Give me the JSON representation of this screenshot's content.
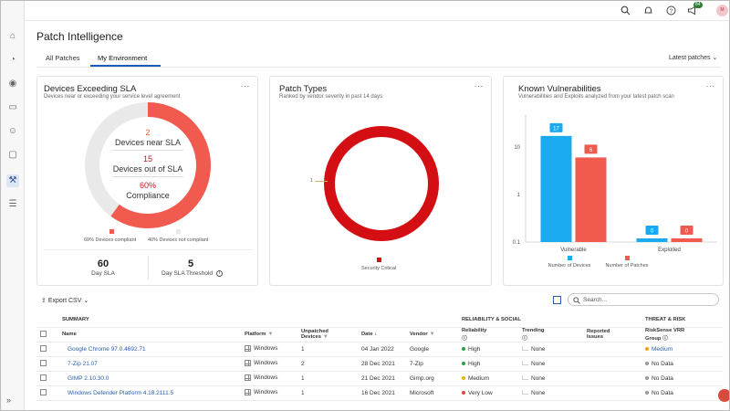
{
  "header": {
    "title": "Patch Intelligence",
    "notifications_badge": "84",
    "avatar_initials": "M"
  },
  "tabs": [
    {
      "label": "All Patches",
      "active": false
    },
    {
      "label": "My Environment",
      "active": true
    }
  ],
  "filter_label": "Latest patches",
  "sla_card": {
    "title": "Devices Exceeding SLA",
    "subtitle": "Devices near or exceeding your service level agreement",
    "near_value": "2",
    "near_label": "Devices near SLA",
    "out_value": "15",
    "out_label": "Devices out of SLA",
    "compliance_value": "60%",
    "compliance_label": "Compliance",
    "legend_compliant": "60% Devices compliant",
    "legend_not_compliant": "40% Devices not compliant",
    "compliance_fraction": 0.6,
    "day_sla_value": "60",
    "day_sla_label": "Day SLA",
    "threshold_value": "5",
    "threshold_label": "Day SLA Threshold",
    "colors": {
      "compliant": "#f05a4f",
      "not_compliant": "#e9e9e9"
    }
  },
  "patch_types": {
    "title": "Patch Types",
    "subtitle": "Ranked by vendor severity in past 14 days",
    "slice_label": "1",
    "legend": "Security Critical",
    "color": "#d40f14"
  },
  "vulnerabilities": {
    "title": "Known Vulnerabilities",
    "subtitle": "Vulnerabilities and Exploits analyzed from your latest patch scan",
    "legend_devices": "Number of Devices",
    "legend_patches": "Number of Patches",
    "colors": {
      "devices": "#1aaaf0",
      "patches": "#f05a4f"
    }
  },
  "chart_data": {
    "type": "bar",
    "categories": [
      "Vulnerable",
      "Exploited"
    ],
    "series": [
      {
        "name": "Number of Devices",
        "values": [
          17,
          0
        ]
      },
      {
        "name": "Number of Patches",
        "values": [
          6,
          0
        ]
      }
    ],
    "yscale": "log",
    "yticks": [
      "0.1",
      "1",
      "10"
    ],
    "ylim": [
      0.1,
      30
    ]
  },
  "table_toolbar": {
    "export_label": "Export CSV",
    "search_placeholder": "Search..."
  },
  "table": {
    "groups": {
      "summary": "SUMMARY",
      "reliability": "RELIABILITY & SOCIAL",
      "threat": "THREAT & RISK"
    },
    "columns": {
      "name": "Name",
      "platform": "Platform",
      "unpatched_1": "Unpatched",
      "unpatched_2": "Devices",
      "date": "Date",
      "vendor": "Vendor",
      "reliability": "Reliability",
      "trending": "Trending",
      "reported_1": "Reported",
      "reported_2": "Issues",
      "vrr_1": "RiskSense VRR",
      "vrr_2": "Group"
    },
    "rows": [
      {
        "name": "Google Chrome 97.0.4692.71",
        "platform": "Windows",
        "devices": "1",
        "date": "04 Jan 2022",
        "vendor": "Google",
        "reliability": "High",
        "rel_color": "#2e9e44",
        "trending": "None",
        "vrr": "Medium",
        "vrr_color": "#f0a020"
      },
      {
        "name": "7-Zip 21.07",
        "platform": "Windows",
        "devices": "2",
        "date": "28 Dec 2021",
        "vendor": "7-Zip",
        "reliability": "High",
        "rel_color": "#2e9e44",
        "trending": "None",
        "vrr": "No Data",
        "vrr_color": "#999999"
      },
      {
        "name": "GIMP 2.10.30.0",
        "platform": "Windows",
        "devices": "1",
        "date": "21 Dec 2021",
        "vendor": "Gimp.org",
        "reliability": "Medium",
        "rel_color": "#e8b400",
        "trending": "None",
        "vrr": "No Data",
        "vrr_color": "#999999"
      },
      {
        "name": "Windows Defender Platform 4.18.2111.5",
        "platform": "Windows",
        "devices": "1",
        "date": "16 Dec 2021",
        "vendor": "Microsoft",
        "reliability": "Very Low",
        "rel_color": "#d94a3a",
        "trending": "None",
        "vrr": "No Data",
        "vrr_color": "#999999"
      }
    ]
  }
}
